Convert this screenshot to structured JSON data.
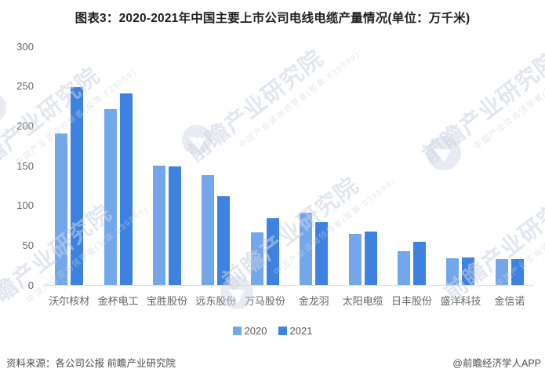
{
  "title": "图表3：2020-2021年中国主要上市公司电线电缆产量情况(单位：万千米)",
  "chart_data": {
    "type": "bar",
    "title": "图表3：2020-2021年中国主要上市公司电线电缆产量情况(单位：万千米)",
    "unit": "万千米",
    "categories": [
      "沃尔核材",
      "金杯电工",
      "宝胜股份",
      "远东股份",
      "万马股份",
      "金龙羽",
      "太阳电缆",
      "日丰股份",
      "盛洋科技",
      "金信诺"
    ],
    "series": [
      {
        "name": "2020",
        "color": "#73A7EB",
        "values": [
          190,
          221,
          150,
          138,
          66,
          91,
          64,
          42,
          34,
          33
        ]
      },
      {
        "name": "2021",
        "color": "#3E82E1",
        "values": [
          249,
          241,
          149,
          112,
          84,
          79,
          67,
          54,
          35,
          33
        ]
      }
    ],
    "xlabel": "",
    "ylabel": "",
    "ylim": [
      0,
      300
    ],
    "yticks": [
      300,
      250,
      200,
      150,
      100,
      50,
      0
    ],
    "grid": false,
    "legend_position": "bottom"
  },
  "legend": {
    "items": [
      {
        "label": "2020",
        "color": "#73A7EB"
      },
      {
        "label": "2021",
        "color": "#3E82E1"
      }
    ]
  },
  "footer": {
    "source": "资料来源：各公司公报 前瞻产业研究院",
    "credit": "@前瞻经济学人APP"
  },
  "watermark": {
    "text": "前瞻产业研究院",
    "subtext": "中国产业咨询领导者(股票:839599)"
  },
  "colors": {
    "bar_2020": "#73A7EB",
    "bar_2021": "#3E82E1",
    "axis_line": "#dcdcdc",
    "axis_text": "#666666",
    "title_text": "#1f1f1f",
    "footer_text": "#4d4d4d"
  }
}
